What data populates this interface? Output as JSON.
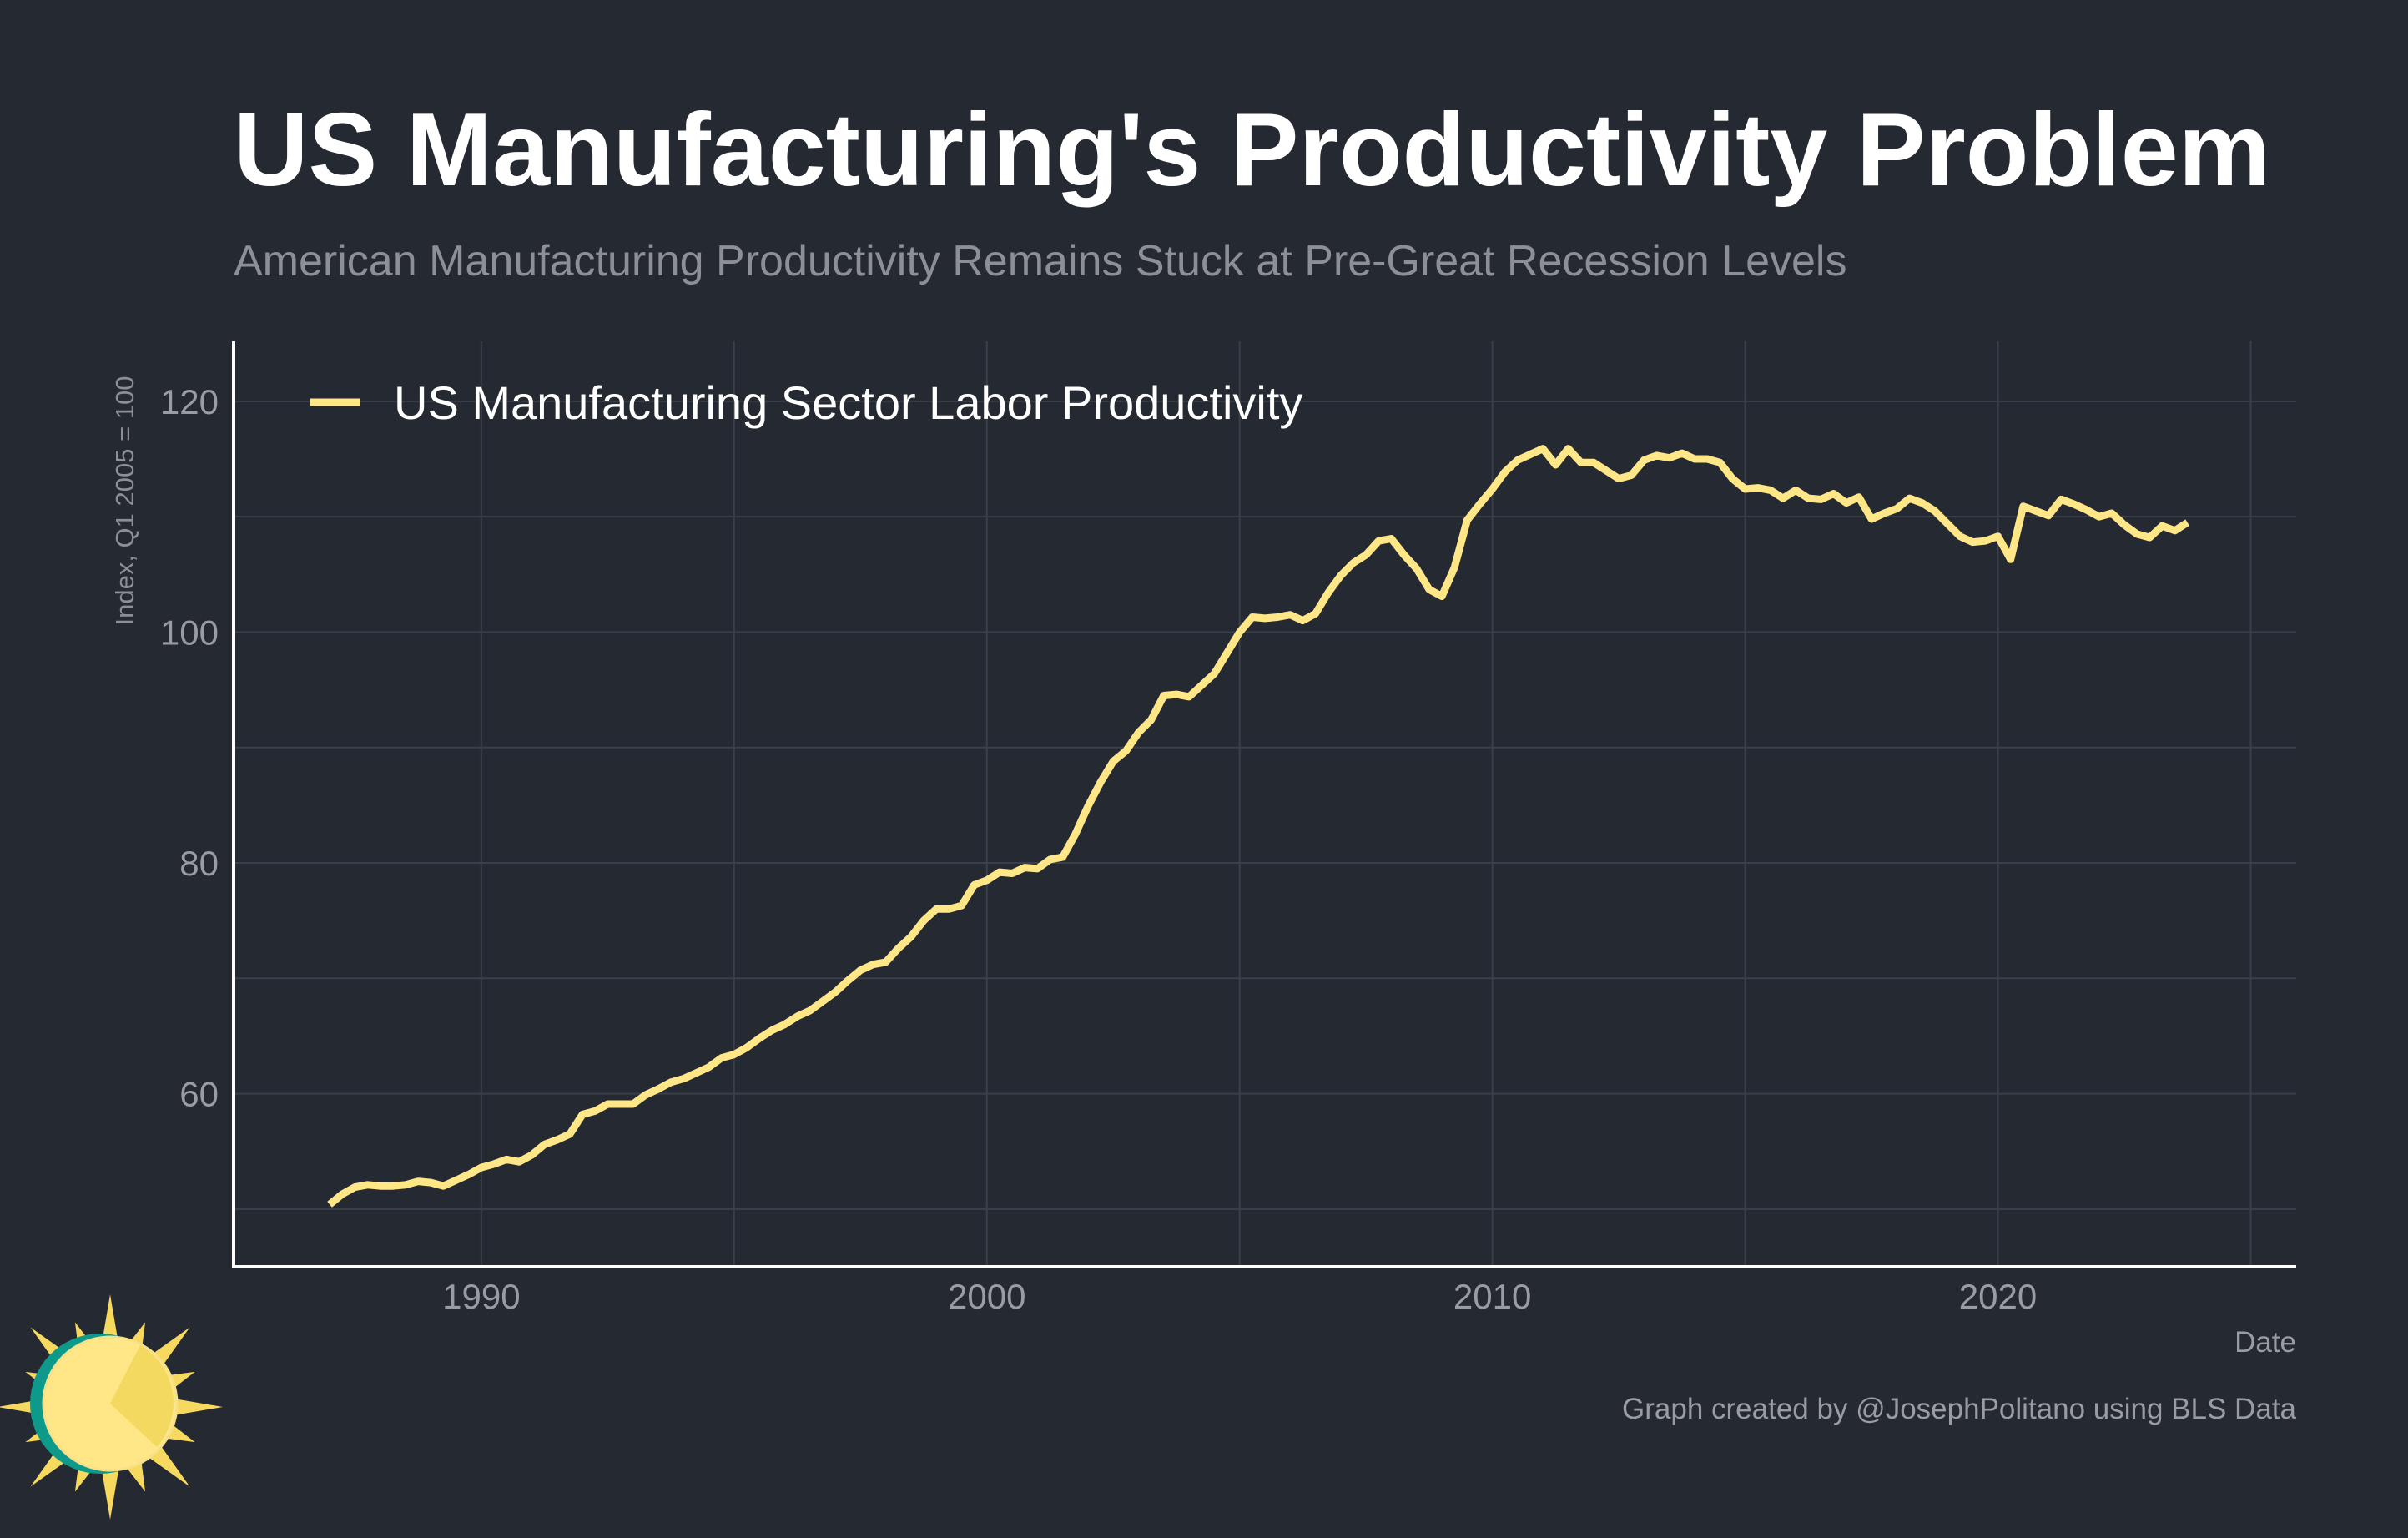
{
  "header": {
    "title": "US Manufacturing's Productivity Problem",
    "subtitle": "American Manufacturing Productivity Remains Stuck at Pre-Great Recession Levels"
  },
  "footer": {
    "credit": "Graph created by @JosephPolitano using BLS Data"
  },
  "colors": {
    "background": "#252932",
    "line": "#ffe787",
    "grid": "#3b3f49",
    "logo_teal": "#0e9a8a",
    "logo_sun": "#ffe787"
  },
  "logo": {
    "icon": "sun-logo-icon"
  },
  "chart_data": {
    "type": "line",
    "title": "US Manufacturing's Productivity Problem",
    "subtitle": "American Manufacturing Productivity Remains Stuck at Pre-Great Recession Levels",
    "xlabel": "Date",
    "ylabel": "Index, Q1 2005 = 100",
    "xlim": [
      1985.1,
      2025.9
    ],
    "ylim": [
      45,
      125.2
    ],
    "x_ticks": [
      "1990",
      "2000",
      "2010",
      "2020"
    ],
    "y_ticks": [
      "60",
      "80",
      "100",
      "120"
    ],
    "grid": true,
    "legend_position": "top-left",
    "series": [
      {
        "name": "US Manufacturing Sector Labor Productivity",
        "color": "#ffe787",
        "frequency": "quarterly",
        "start": "1987-Q1",
        "end": "2023-Q4",
        "values": [
          50.4,
          51.3,
          51.9,
          52.1,
          52.0,
          52.0,
          52.1,
          52.4,
          52.3,
          52.0,
          52.5,
          53.0,
          53.6,
          53.9,
          54.3,
          54.1,
          54.7,
          55.6,
          56.0,
          56.5,
          58.2,
          58.5,
          59.1,
          59.1,
          59.1,
          59.9,
          60.4,
          61.0,
          61.3,
          61.8,
          62.3,
          63.1,
          63.4,
          64.0,
          64.8,
          65.5,
          66.0,
          66.7,
          67.2,
          68.0,
          68.8,
          69.8,
          70.7,
          71.2,
          71.4,
          72.6,
          73.6,
          75.0,
          76.0,
          76.0,
          76.3,
          78.1,
          78.5,
          79.2,
          79.1,
          79.6,
          79.5,
          80.3,
          80.5,
          82.5,
          84.9,
          87.0,
          88.8,
          89.7,
          91.3,
          92.4,
          94.5,
          94.6,
          94.4,
          95.4,
          96.4,
          98.2,
          100.0,
          101.3,
          101.2,
          101.3,
          101.5,
          101.0,
          101.6,
          103.4,
          104.9,
          106.0,
          106.7,
          107.9,
          108.1,
          106.7,
          105.5,
          103.7,
          103.1,
          105.6,
          109.7,
          111.1,
          112.4,
          113.9,
          114.9,
          115.4,
          115.9,
          114.5,
          115.9,
          114.7,
          114.7,
          114.0,
          113.3,
          113.6,
          114.9,
          115.3,
          115.1,
          115.5,
          115.0,
          115.0,
          114.7,
          113.3,
          112.4,
          112.5,
          112.3,
          111.6,
          112.3,
          111.6,
          111.5,
          112.0,
          111.2,
          111.7,
          109.8,
          110.3,
          110.7,
          111.6,
          111.2,
          110.5,
          109.4,
          108.3,
          107.8,
          107.9,
          108.3,
          106.3,
          110.9,
          110.5,
          110.1,
          111.5,
          111.1,
          110.6,
          110.0,
          110.3,
          109.3,
          108.5,
          108.2,
          109.2,
          108.8,
          109.5
        ]
      }
    ]
  }
}
